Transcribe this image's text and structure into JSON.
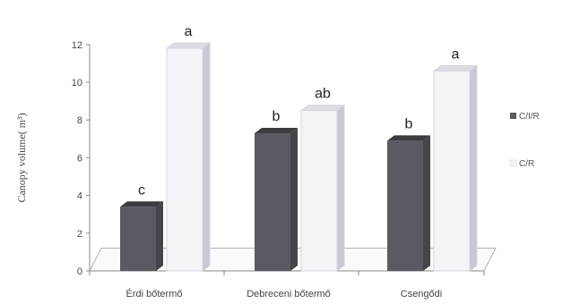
{
  "chart_data": {
    "type": "bar",
    "categories": [
      "Érdi bőtermő",
      "Debreceni bőtermő",
      "Csengődi"
    ],
    "series": [
      {
        "name": "C/I/R",
        "values": [
          3.4,
          7.3,
          6.9
        ],
        "labels": [
          "c",
          "b",
          "b"
        ],
        "color": "#5a5a62"
      },
      {
        "name": "C/R",
        "values": [
          11.8,
          8.5,
          10.6
        ],
        "labels": [
          "a",
          "ab",
          "a"
        ],
        "color": "#f4f4f8"
      }
    ],
    "ylabel": "Canopy volume( m³)",
    "ylim": [
      0,
      12
    ],
    "yticks": [
      "0",
      "2",
      "4",
      "6",
      "8",
      "10",
      "12"
    ],
    "grid": false,
    "legend_position": "right",
    "style": "3d-column"
  }
}
